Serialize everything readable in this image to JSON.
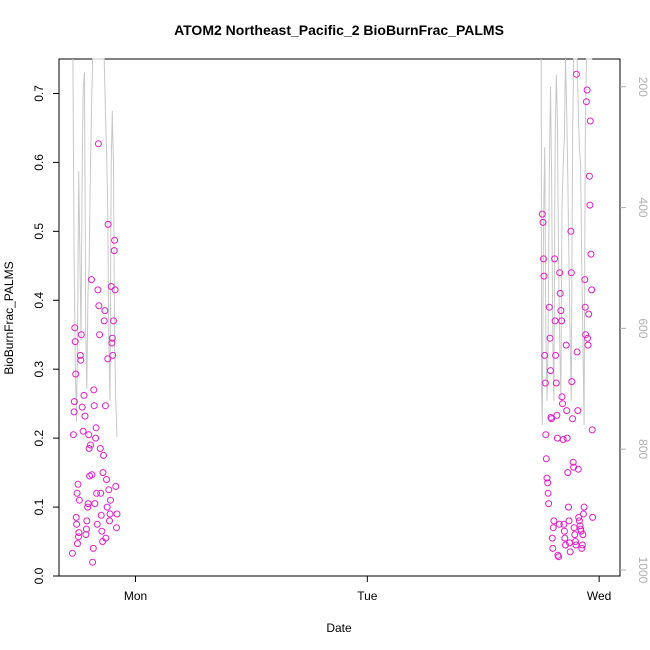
{
  "chart_data": {
    "type": "scatter",
    "title": "ATOM2 Northeast_Pacific_2 BioBurnFrac_PALMS",
    "xlabel": "Date",
    "ylabel": "BioBurnFrac_PALMS",
    "x_ticks": [
      "Mon",
      "Tue",
      "Wed"
    ],
    "x_tick_values": [
      1.0,
      2.0,
      3.0
    ],
    "xlim": [
      0.67,
      3.09
    ],
    "ylim": [
      0.0,
      0.75
    ],
    "y_ticks": [
      "0.0",
      "0.1",
      "0.2",
      "0.3",
      "0.4",
      "0.5",
      "0.6",
      "0.7"
    ],
    "y_tick_values": [
      0.0,
      0.1,
      0.2,
      0.3,
      0.4,
      0.5,
      0.6,
      0.7
    ],
    "right_axis": {
      "ticks": [
        "200",
        "400",
        "600",
        "800",
        "1000"
      ],
      "tick_values": [
        200,
        400,
        600,
        800,
        1000
      ],
      "lim": [
        154,
        1010
      ],
      "color": "#b0b0b0"
    },
    "grid": false,
    "colors": {
      "points": "#e020c8",
      "line": "#c8c8c8"
    },
    "series": [
      {
        "values": [
          [
            0.728,
            0.033
          ],
          [
            0.732,
            0.205
          ],
          [
            0.735,
            0.238
          ],
          [
            0.736,
            0.253
          ],
          [
            0.738,
            0.36
          ],
          [
            0.74,
            0.34
          ],
          [
            0.742,
            0.293
          ],
          [
            0.744,
            0.085
          ],
          [
            0.746,
            0.075
          ],
          [
            0.748,
            0.12
          ],
          [
            0.75,
            0.047
          ],
          [
            0.752,
            0.133
          ],
          [
            0.754,
            0.057
          ],
          [
            0.756,
            0.063
          ],
          [
            0.758,
            0.11
          ],
          [
            0.762,
            0.32
          ],
          [
            0.764,
            0.313
          ],
          [
            0.766,
            0.35
          ],
          [
            0.77,
            0.245
          ],
          [
            0.774,
            0.21
          ],
          [
            0.778,
            0.262
          ],
          [
            0.782,
            0.232
          ],
          [
            0.786,
            0.06
          ],
          [
            0.788,
            0.068
          ],
          [
            0.79,
            0.08
          ],
          [
            0.794,
            0.1
          ],
          [
            0.796,
            0.105
          ],
          [
            0.798,
            0.205
          ],
          [
            0.8,
            0.185
          ],
          [
            0.802,
            0.145
          ],
          [
            0.806,
            0.19
          ],
          [
            0.81,
            0.43
          ],
          [
            0.812,
            0.147
          ],
          [
            0.815,
            0.02
          ],
          [
            0.818,
            0.04
          ],
          [
            0.82,
            0.27
          ],
          [
            0.822,
            0.247
          ],
          [
            0.825,
            0.105
          ],
          [
            0.828,
            0.2
          ],
          [
            0.83,
            0.215
          ],
          [
            0.832,
            0.12
          ],
          [
            0.835,
            0.075
          ],
          [
            0.838,
            0.415
          ],
          [
            0.84,
            0.627
          ],
          [
            0.842,
            0.392
          ],
          [
            0.845,
            0.35
          ],
          [
            0.848,
            0.185
          ],
          [
            0.85,
            0.12
          ],
          [
            0.852,
            0.088
          ],
          [
            0.855,
            0.065
          ],
          [
            0.858,
            0.05
          ],
          [
            0.86,
            0.15
          ],
          [
            0.862,
            0.175
          ],
          [
            0.865,
            0.37
          ],
          [
            0.868,
            0.385
          ],
          [
            0.87,
            0.247
          ],
          [
            0.872,
            0.055
          ],
          [
            0.875,
            0.14
          ],
          [
            0.878,
            0.1
          ],
          [
            0.88,
            0.315
          ],
          [
            0.882,
            0.51
          ],
          [
            0.885,
            0.125
          ],
          [
            0.888,
            0.08
          ],
          [
            0.89,
            0.09
          ],
          [
            0.892,
            0.11
          ],
          [
            0.895,
            0.42
          ],
          [
            0.898,
            0.338
          ],
          [
            0.9,
            0.345
          ],
          [
            0.902,
            0.32
          ],
          [
            0.905,
            0.37
          ],
          [
            0.908,
            0.472
          ],
          [
            0.91,
            0.487
          ],
          [
            0.912,
            0.415
          ],
          [
            0.915,
            0.13
          ],
          [
            0.918,
            0.07
          ],
          [
            0.92,
            0.09
          ],
          [
            2.755,
            0.525
          ],
          [
            2.758,
            0.513
          ],
          [
            2.76,
            0.46
          ],
          [
            2.762,
            0.435
          ],
          [
            2.765,
            0.32
          ],
          [
            2.768,
            0.28
          ],
          [
            2.77,
            0.205
          ],
          [
            2.772,
            0.17
          ],
          [
            2.775,
            0.142
          ],
          [
            2.778,
            0.135
          ],
          [
            2.78,
            0.12
          ],
          [
            2.782,
            0.105
          ],
          [
            2.785,
            0.39
          ],
          [
            2.788,
            0.345
          ],
          [
            2.79,
            0.298
          ],
          [
            2.792,
            0.23
          ],
          [
            2.795,
            0.228
          ],
          [
            2.798,
            0.055
          ],
          [
            2.8,
            0.04
          ],
          [
            2.802,
            0.07
          ],
          [
            2.805,
            0.08
          ],
          [
            2.808,
            0.46
          ],
          [
            2.81,
            0.37
          ],
          [
            2.812,
            0.32
          ],
          [
            2.815,
            0.28
          ],
          [
            2.818,
            0.233
          ],
          [
            2.82,
            0.2
          ],
          [
            2.822,
            0.03
          ],
          [
            2.825,
            0.028
          ],
          [
            2.828,
            0.075
          ],
          [
            2.83,
            0.44
          ],
          [
            2.832,
            0.41
          ],
          [
            2.835,
            0.385
          ],
          [
            2.838,
            0.37
          ],
          [
            2.84,
            0.26
          ],
          [
            2.842,
            0.25
          ],
          [
            2.845,
            0.198
          ],
          [
            2.848,
            0.075
          ],
          [
            2.85,
            0.065
          ],
          [
            2.852,
            0.055
          ],
          [
            2.855,
            0.045
          ],
          [
            2.858,
            0.335
          ],
          [
            2.86,
            0.24
          ],
          [
            2.862,
            0.2
          ],
          [
            2.865,
            0.15
          ],
          [
            2.868,
            0.1
          ],
          [
            2.87,
            0.08
          ],
          [
            2.872,
            0.048
          ],
          [
            2.875,
            0.035
          ],
          [
            2.878,
            0.5
          ],
          [
            2.88,
            0.44
          ],
          [
            2.882,
            0.282
          ],
          [
            2.885,
            0.228
          ],
          [
            2.888,
            0.165
          ],
          [
            2.89,
            0.158
          ],
          [
            2.892,
            0.07
          ],
          [
            2.895,
            0.06
          ],
          [
            2.898,
            0.05
          ],
          [
            2.9,
            0.045
          ],
          [
            2.902,
            0.728
          ],
          [
            2.905,
            0.325
          ],
          [
            2.908,
            0.24
          ],
          [
            2.91,
            0.155
          ],
          [
            2.912,
            0.085
          ],
          [
            2.915,
            0.08
          ],
          [
            2.918,
            0.073
          ],
          [
            2.92,
            0.068
          ],
          [
            2.922,
            0.065
          ],
          [
            2.925,
            0.04
          ],
          [
            2.928,
            0.045
          ],
          [
            2.93,
            0.06
          ],
          [
            2.932,
            0.09
          ],
          [
            2.935,
            0.1
          ],
          [
            2.938,
            0.43
          ],
          [
            2.94,
            0.39
          ],
          [
            2.942,
            0.35
          ],
          [
            2.945,
            0.688
          ],
          [
            2.948,
            0.705
          ],
          [
            2.95,
            0.345
          ],
          [
            2.952,
            0.335
          ],
          [
            2.955,
            0.38
          ],
          [
            2.958,
            0.58
          ],
          [
            2.96,
            0.538
          ],
          [
            2.962,
            0.66
          ],
          [
            2.965,
            0.467
          ],
          [
            2.968,
            0.415
          ],
          [
            2.97,
            0.212
          ],
          [
            2.972,
            0.085
          ]
        ]
      }
    ],
    "line_series": {
      "axis": "right",
      "values": [
        [
          0.73,
          154
        ],
        [
          0.735,
          480
        ],
        [
          0.74,
          650
        ],
        [
          0.745,
          754
        ],
        [
          0.75,
          620
        ],
        [
          0.755,
          340
        ],
        [
          0.76,
          480
        ],
        [
          0.765,
          620
        ],
        [
          0.77,
          330
        ],
        [
          0.775,
          200
        ],
        [
          0.78,
          176
        ],
        [
          0.785,
          600
        ],
        [
          0.79,
          700
        ],
        [
          0.795,
          540
        ],
        [
          0.8,
          500
        ],
        [
          0.805,
          350
        ],
        [
          0.81,
          240
        ],
        [
          0.815,
          154
        ],
        [
          0.82,
          154
        ],
        [
          0.825,
          154
        ],
        [
          0.83,
          154
        ],
        [
          0.835,
          154
        ],
        [
          0.84,
          154
        ],
        [
          0.845,
          154
        ],
        [
          0.85,
          154
        ],
        [
          0.855,
          154
        ],
        [
          0.86,
          154
        ],
        [
          0.865,
          154
        ],
        [
          0.87,
          240
        ],
        [
          0.875,
          300
        ],
        [
          0.88,
          400
        ],
        [
          0.885,
          620
        ],
        [
          0.89,
          720
        ],
        [
          0.895,
          330
        ],
        [
          0.9,
          240
        ],
        [
          0.905,
          330
        ],
        [
          0.91,
          620
        ],
        [
          0.915,
          720
        ],
        [
          0.92,
          780
        ],
        [
          2.75,
          154
        ],
        [
          2.752,
          700
        ],
        [
          2.755,
          760
        ],
        [
          2.76,
          430
        ],
        [
          2.765,
          300
        ],
        [
          2.77,
          600
        ],
        [
          2.775,
          720
        ],
        [
          2.78,
          620
        ],
        [
          2.785,
          340
        ],
        [
          2.79,
          200
        ],
        [
          2.795,
          350
        ],
        [
          2.8,
          620
        ],
        [
          2.805,
          720
        ],
        [
          2.81,
          300
        ],
        [
          2.815,
          180
        ],
        [
          2.82,
          250
        ],
        [
          2.825,
          500
        ],
        [
          2.83,
          620
        ],
        [
          2.835,
          720
        ],
        [
          2.84,
          400
        ],
        [
          2.845,
          330
        ],
        [
          2.85,
          280
        ],
        [
          2.855,
          154
        ],
        [
          2.86,
          240
        ],
        [
          2.865,
          350
        ],
        [
          2.87,
          500
        ],
        [
          2.875,
          620
        ],
        [
          2.88,
          720
        ],
        [
          2.885,
          300
        ],
        [
          2.89,
          154
        ],
        [
          2.895,
          154
        ],
        [
          2.9,
          154
        ],
        [
          2.905,
          154
        ],
        [
          2.91,
          240
        ],
        [
          2.915,
          300
        ],
        [
          2.92,
          330
        ],
        [
          2.925,
          500
        ],
        [
          2.93,
          620
        ],
        [
          2.935,
          760
        ],
        [
          2.94,
          300
        ],
        [
          2.945,
          154
        ],
        [
          2.95,
          154
        ],
        [
          2.955,
          154
        ],
        [
          2.96,
          154
        ],
        [
          2.965,
          154
        ],
        [
          2.97,
          154
        ]
      ]
    }
  }
}
